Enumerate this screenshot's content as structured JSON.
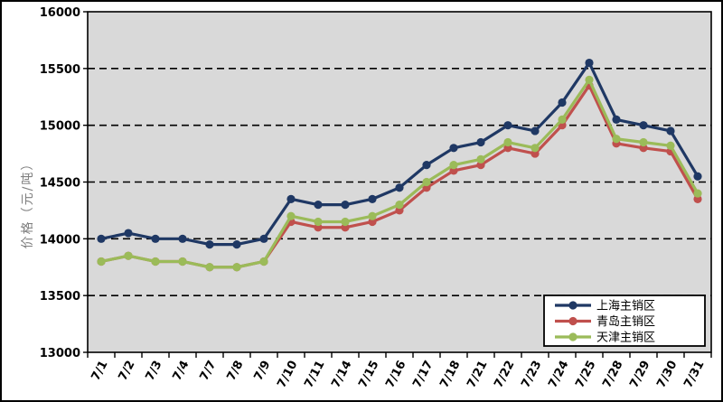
{
  "chart_data": {
    "type": "line",
    "title": "",
    "xlabel": "",
    "ylabel": "价格（元/吨）",
    "ylim": [
      13000,
      16000
    ],
    "ytick_step": 500,
    "yticks": [
      13000,
      13500,
      14000,
      14500,
      15000,
      15500,
      16000
    ],
    "grid": "horizontal-dashed",
    "legend_position": "bottom-right-inside",
    "plot_bg_color": "#d9d9d9",
    "gridline_color": "#000000",
    "axis_text_color": "#000000",
    "ylabel_color": "#7f7f7f",
    "categories": [
      "7/1",
      "7/2",
      "7/3",
      "7/4",
      "7/7",
      "7/8",
      "7/9",
      "7/10",
      "7/11",
      "7/14",
      "7/15",
      "7/16",
      "7/17",
      "7/18",
      "7/21",
      "7/22",
      "7/23",
      "7/24",
      "7/25",
      "7/28",
      "7/29",
      "7/30",
      "7/31"
    ],
    "series": [
      {
        "name": "上海主销区",
        "color": "#1f3864",
        "values": [
          14000,
          14050,
          14000,
          14000,
          13950,
          13950,
          14000,
          14350,
          14300,
          14300,
          14350,
          14450,
          14650,
          14800,
          14850,
          15000,
          14950,
          15200,
          15550,
          15050,
          15000,
          14950,
          14550
        ]
      },
      {
        "name": "青岛主销区",
        "color": "#c0504d",
        "values": [
          13800,
          13850,
          13800,
          13800,
          13750,
          13750,
          13800,
          14150,
          14100,
          14100,
          14150,
          14250,
          14450,
          14600,
          14650,
          14800,
          14750,
          15000,
          15350,
          14840,
          14800,
          14770,
          14350
        ]
      },
      {
        "name": "天津主销区",
        "color": "#9bbb59",
        "values": [
          13800,
          13850,
          13800,
          13800,
          13750,
          13750,
          13800,
          14200,
          14150,
          14150,
          14200,
          14300,
          14500,
          14650,
          14700,
          14850,
          14800,
          15050,
          15400,
          14880,
          14850,
          14820,
          14400
        ]
      }
    ]
  }
}
